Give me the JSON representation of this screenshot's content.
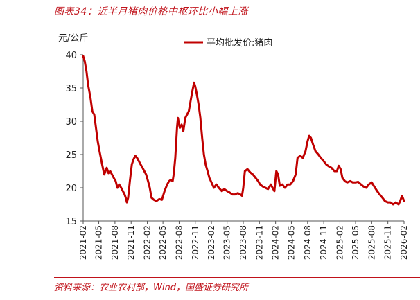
{
  "header": {
    "title": "图表34：近半月猪肉价格中枢环比小幅上涨"
  },
  "footer": {
    "source": "资料来源：农业农村部，Wind，国盛证券研究所"
  },
  "colors": {
    "accent": "#c0121a",
    "series": "#c00000"
  },
  "chart_data": {
    "type": "line",
    "title": "",
    "ylabel": "元/公斤",
    "xlabel": "",
    "ylim": [
      15,
      40
    ],
    "yticks": [
      15,
      20,
      25,
      30,
      35,
      40
    ],
    "xlim": [
      "2021-02",
      "2026-02"
    ],
    "xticks": [
      "2021-02",
      "2021-05",
      "2021-08",
      "2021-11",
      "2022-02",
      "2022-05",
      "2022-08",
      "2022-11",
      "2023-02",
      "2023-05",
      "2023-08",
      "2023-11",
      "2024-02",
      "2024-05",
      "2024-08",
      "2024-11",
      "2025-02",
      "2025-05",
      "2025-08",
      "2025-11",
      "2026-02"
    ],
    "legend": "top-center",
    "grid": false,
    "series": [
      {
        "name": "平均批发价:猪肉",
        "x": [
          "2021-02-01",
          "2021-02-10",
          "2021-02-20",
          "2021-03-01",
          "2021-03-15",
          "2021-03-25",
          "2021-04-05",
          "2021-04-15",
          "2021-04-25",
          "2021-05-05",
          "2021-05-20",
          "2021-06-01",
          "2021-06-15",
          "2021-06-25",
          "2021-07-05",
          "2021-07-15",
          "2021-07-25",
          "2021-08-05",
          "2021-08-15",
          "2021-08-25",
          "2021-09-05",
          "2021-09-15",
          "2021-09-25",
          "2021-10-01",
          "2021-10-08",
          "2021-10-15",
          "2021-10-25",
          "2021-11-05",
          "2021-11-15",
          "2021-11-25",
          "2021-12-05",
          "2021-12-15",
          "2021-12-25",
          "2022-01-05",
          "2022-01-15",
          "2022-01-25",
          "2022-02-05",
          "2022-02-15",
          "2022-02-25",
          "2022-03-10",
          "2022-03-25",
          "2022-04-10",
          "2022-04-25",
          "2022-05-10",
          "2022-05-25",
          "2022-06-05",
          "2022-06-15",
          "2022-06-25",
          "2022-07-01",
          "2022-07-10",
          "2022-07-20",
          "2022-07-25",
          "2022-08-05",
          "2022-08-15",
          "2022-08-25",
          "2022-09-05",
          "2022-09-15",
          "2022-09-25",
          "2022-10-05",
          "2022-10-15",
          "2022-10-25",
          "2022-11-01",
          "2022-11-10",
          "2022-11-20",
          "2022-11-30",
          "2022-12-10",
          "2022-12-20",
          "2022-12-30",
          "2023-01-10",
          "2023-01-20",
          "2023-02-01",
          "2023-02-15",
          "2023-03-01",
          "2023-03-15",
          "2023-04-01",
          "2023-04-15",
          "2023-05-01",
          "2023-05-15",
          "2023-06-01",
          "2023-06-15",
          "2023-07-01",
          "2023-07-15",
          "2023-07-25",
          "2023-08-01",
          "2023-08-10",
          "2023-08-25",
          "2023-09-10",
          "2023-09-25",
          "2023-10-10",
          "2023-10-25",
          "2023-11-05",
          "2023-11-20",
          "2023-12-05",
          "2023-12-20",
          "2024-01-05",
          "2024-01-15",
          "2024-01-25",
          "2024-02-05",
          "2024-02-15",
          "2024-02-25",
          "2024-03-10",
          "2024-03-25",
          "2024-04-10",
          "2024-04-25",
          "2024-05-10",
          "2024-05-25",
          "2024-06-05",
          "2024-06-20",
          "2024-07-05",
          "2024-07-20",
          "2024-08-01",
          "2024-08-10",
          "2024-08-20",
          "2024-09-01",
          "2024-09-15",
          "2024-10-01",
          "2024-10-15",
          "2024-11-01",
          "2024-11-15",
          "2024-12-01",
          "2024-12-15",
          "2025-01-01",
          "2025-01-15",
          "2025-01-25",
          "2025-02-05",
          "2025-02-15",
          "2025-03-01",
          "2025-03-15",
          "2025-04-01",
          "2025-04-15",
          "2025-05-01",
          "2025-05-15",
          "2025-06-01",
          "2025-06-15",
          "2025-07-01",
          "2025-07-15",
          "2025-08-01",
          "2025-08-15",
          "2025-09-01",
          "2025-09-15",
          "2025-10-01",
          "2025-10-15",
          "2025-11-01",
          "2025-11-15",
          "2025-12-01",
          "2025-12-15",
          "2026-01-01",
          "2026-01-10",
          "2026-01-20",
          "2026-02-01"
        ],
        "values": [
          39.8,
          39.0,
          37.5,
          35.5,
          33.5,
          31.5,
          31.0,
          29.0,
          27.0,
          25.5,
          23.5,
          22.0,
          23.0,
          22.2,
          22.5,
          22.0,
          21.5,
          21.0,
          20.0,
          20.5,
          20.0,
          19.5,
          19.0,
          18.5,
          17.8,
          18.5,
          21.0,
          23.5,
          24.3,
          24.8,
          24.5,
          24.0,
          23.5,
          23.0,
          22.5,
          22.0,
          21.0,
          20.0,
          18.5,
          18.2,
          18.0,
          18.3,
          18.2,
          19.5,
          20.5,
          21.0,
          21.2,
          21.0,
          22.0,
          24.5,
          29.0,
          30.5,
          29.0,
          29.5,
          28.5,
          30.5,
          31.0,
          31.5,
          33.0,
          34.5,
          35.8,
          35.2,
          34.0,
          32.5,
          30.5,
          27.5,
          25.0,
          23.5,
          22.5,
          21.5,
          20.8,
          20.0,
          20.5,
          20.0,
          19.5,
          19.8,
          19.5,
          19.3,
          19.0,
          19.0,
          19.2,
          19.0,
          18.8,
          20.0,
          22.5,
          22.8,
          22.3,
          22.0,
          21.5,
          21.0,
          20.5,
          20.2,
          20.0,
          19.8,
          20.5,
          20.0,
          19.5,
          22.5,
          22.0,
          20.3,
          20.5,
          20.0,
          20.5,
          20.5,
          21.0,
          22.0,
          24.5,
          24.8,
          24.5,
          25.5,
          27.0,
          27.8,
          27.5,
          26.5,
          25.5,
          25.0,
          24.5,
          24.0,
          23.5,
          23.2,
          23.0,
          22.5,
          22.5,
          23.3,
          22.8,
          21.5,
          21.0,
          20.8,
          21.0,
          20.8,
          20.8,
          20.9,
          20.5,
          20.2,
          20.0,
          20.5,
          20.8,
          20.2,
          19.5,
          19.0,
          18.5,
          18.0,
          17.8,
          17.8,
          17.5,
          17.8,
          17.5,
          18.0,
          18.8,
          18.0
        ]
      }
    ]
  }
}
